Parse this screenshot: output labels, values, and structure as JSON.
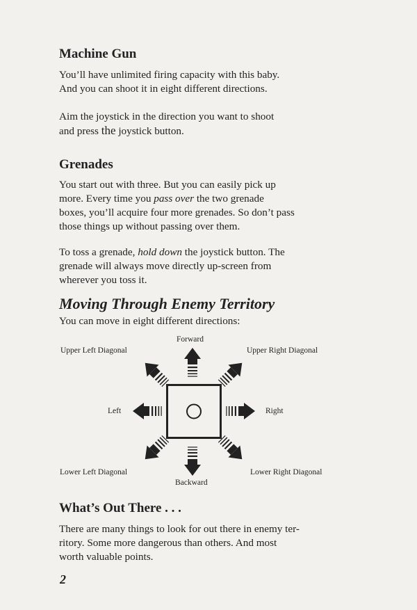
{
  "machine_gun": {
    "title": "Machine Gun",
    "para1": [
      "You’ll have unlimited firing capacity with this baby.",
      "And you can shoot it in eight different directions."
    ],
    "para2_line1": "Aim the joystick in the direction you want to shoot",
    "para2_line2_a": "and press ",
    "para2_line2_big": "the",
    "para2_line2_b": " joystick button."
  },
  "grenades": {
    "title": "Grenades",
    "p1_line1": "You start out with three.  But you can easily pick up",
    "p1_line2_a": "more.  Every time you ",
    "p1_line2_em": "pass over",
    "p1_line2_b": "  the two grenade",
    "p1_line3": "boxes, you’ll acquire four more grenades.  So don’t pass",
    "p1_line4": "those things up without passing over them.",
    "p2_line1_a": "To toss a grenade, ",
    "p2_line1_em": "hold down",
    "p2_line1_b": "  the joystick button.   The",
    "p2_line2": "grenade will always move directly up-screen from",
    "p2_line3": "wherever you toss it."
  },
  "moving": {
    "title": "Moving Through Enemy Territory",
    "intro": "You can move in eight different directions:",
    "directions": {
      "forward": "Forward",
      "upper_left": "Upper Left Diagonal",
      "upper_right": "Upper Right Diagonal",
      "left": "Left",
      "right": "Right",
      "lower_left": "Lower Left Diagonal",
      "lower_right": "Lower Right Diagonal",
      "backward": "Backward"
    }
  },
  "whats_out": {
    "title": "What’s Out There . . .",
    "lines": [
      "There are many things to look for out there in enemy ter-",
      "ritory.  Some more dangerous than others.  And most",
      "worth valuable points."
    ]
  },
  "page_number": "2"
}
